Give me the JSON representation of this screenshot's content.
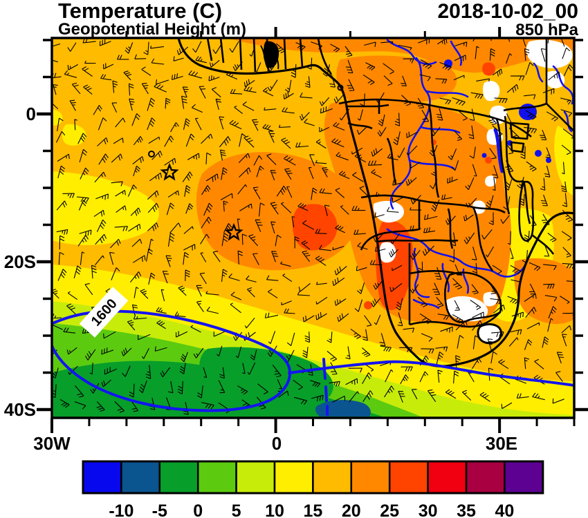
{
  "header": {
    "title": "Temperature (C)",
    "subtitle": "Geopotential Height (m)",
    "datetime": "2018-10-02_00",
    "level": "850 hPa"
  },
  "axes": {
    "lat_labels": [
      "0",
      "20S",
      "40S"
    ],
    "lon_labels": [
      "30W",
      "0",
      "30E"
    ]
  },
  "contour_label": "1600",
  "chart_data": {
    "type": "heatmap",
    "title": "Temperature (C)",
    "overlay_field": "Geopotential Height (m)",
    "valid_time": "2018-10-02_00",
    "pressure_level": "850 hPa",
    "region": "Southern Africa and tropical/south Atlantic",
    "lon_extent": [
      "30W",
      "40E"
    ],
    "lat_extent": [
      "10N",
      "41S"
    ],
    "axis_ticks": {
      "lon_major": [
        "30W",
        "0",
        "30E"
      ],
      "lat_major": [
        "0",
        "20S",
        "40S"
      ],
      "minor_interval_deg": 5
    },
    "colorbar": {
      "units": "C",
      "tick_labels": [
        "-10",
        "-5",
        "0",
        "5",
        "10",
        "15",
        "20",
        "25",
        "30",
        "35",
        "40"
      ],
      "colors": [
        "#0808EE",
        "#0A5490",
        "#089E2A",
        "#5CCB10",
        "#C8EC0A",
        "#FFEE00",
        "#FFBB00",
        "#FF8800",
        "#FF4400",
        "#F00010",
        "#A80040",
        "#5C0192"
      ]
    },
    "geopotential_contour_labels": [
      "1600"
    ],
    "overlay_symbols": "wind barbs plotted over entire domain; two open star markers and one small circle marker in the tropical Atlantic",
    "temperature_regions": [
      {
        "range_c": "15 to 20",
        "color_index": 6,
        "note": "dominant shade over tropical Atlantic and central Africa"
      },
      {
        "range_c": "20 to 25",
        "color_index": 7,
        "note": "warm blob near 10W-10E / 5S-20S and over Angola-Zambia-Botswana"
      },
      {
        "range_c": "25 to 30",
        "color_index": 8,
        "note": "hot spots near 7W,13S and along the Namibian coast"
      },
      {
        "range_c": "10 to 15",
        "color_index": 5,
        "note": "Mozambique band, SE edge of domain and small west-Atlantic patches"
      },
      {
        "range_c": "5 to 10",
        "color_index": 4,
        "note": "outer band of the SE Atlantic cool pool"
      },
      {
        "range_c": "0 to 5",
        "color_index": 3,
        "note": "middle band of the SE Atlantic cool pool"
      },
      {
        "range_c": "-5 to 0",
        "color_index": 2,
        "note": "core of the SE Atlantic cool pool near 30-40S"
      },
      {
        "range_c": "-10 to -5",
        "color_index": 1,
        "note": "small pocket near 8W,40S"
      }
    ],
    "missing_data_color": "#FFFFFF"
  },
  "colors": {
    "rivers": "#1111EE",
    "height_contour": "#1414F0",
    "coast": "#000000"
  }
}
